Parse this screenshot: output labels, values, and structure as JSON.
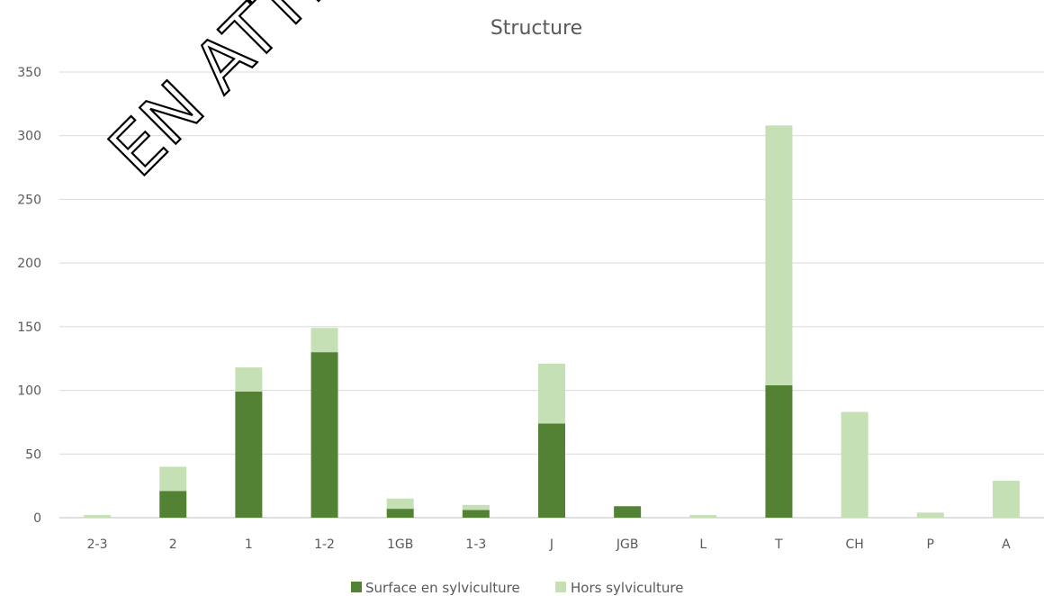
{
  "chart_data": {
    "type": "bar",
    "stacked": true,
    "title": "Structure",
    "xlabel": "",
    "ylabel": "",
    "ylim": [
      0,
      350
    ],
    "yticks": [
      0,
      50,
      100,
      150,
      200,
      250,
      300,
      350
    ],
    "grid": true,
    "legend_position": "bottom",
    "categories": [
      "2-3",
      "2",
      "1",
      "1-2",
      "1GB",
      "1-3",
      "J",
      "JGB",
      "L",
      "T",
      "CH",
      "P",
      "A"
    ],
    "series": [
      {
        "name": "Surface en sylviculture",
        "color": "#548235",
        "values": [
          0,
          21,
          99,
          130,
          7,
          6,
          74,
          9,
          0,
          104,
          0,
          0,
          0
        ]
      },
      {
        "name": "Hors sylviculture",
        "color": "#c5e0b4",
        "values": [
          2,
          19,
          19,
          19,
          8,
          4,
          47,
          0,
          2,
          204,
          83,
          4,
          29
        ]
      }
    ],
    "watermark": "EN ATTE"
  }
}
